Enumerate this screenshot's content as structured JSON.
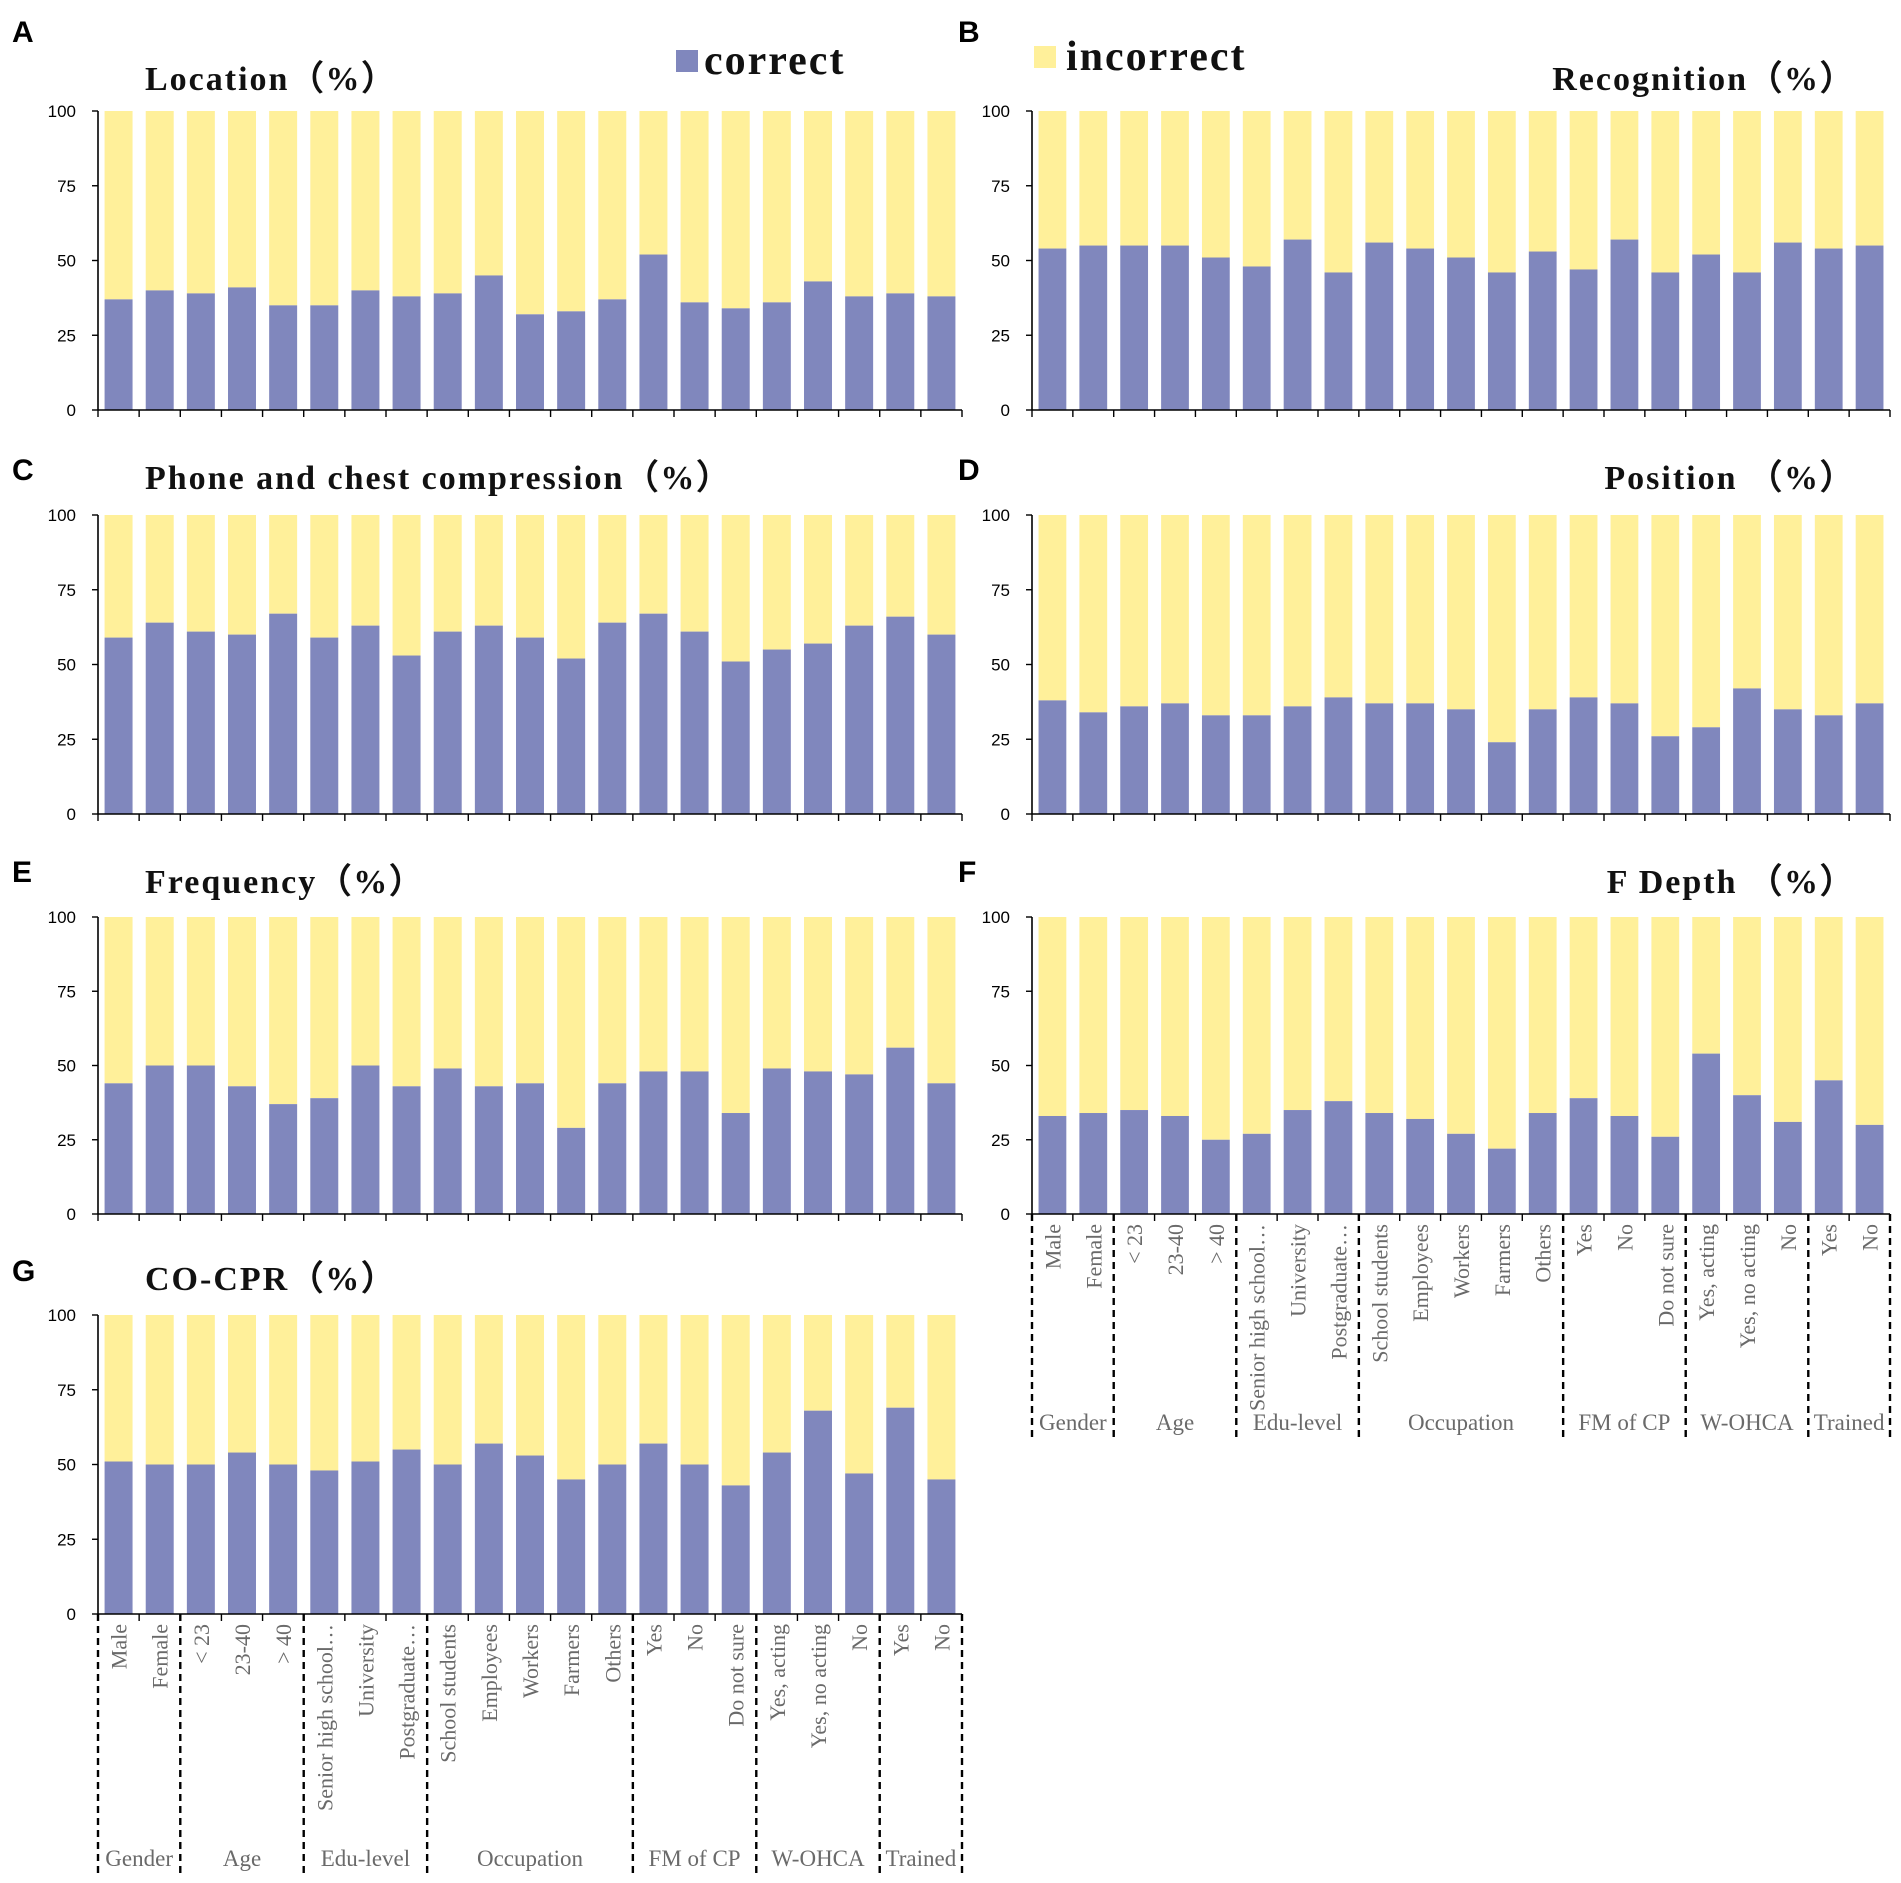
{
  "legend": {
    "correct_label": "correct",
    "incorrect_label": "incorrect",
    "correct_color": "#8087bd",
    "incorrect_color": "#fff09a"
  },
  "categories": [
    "Male",
    "Female",
    "< 23",
    "23-40",
    "> 40",
    "Senior high school…",
    "University",
    "Postgraduate…",
    "School students",
    "Employees",
    "Workers",
    "Farmers",
    "Others",
    "Yes",
    "No",
    "Do not sure",
    "Yes, acting",
    "Yes, no acting",
    "No",
    "Yes",
    "No"
  ],
  "groups": [
    {
      "label": "Gender",
      "start": 0,
      "end": 1
    },
    {
      "label": "Age",
      "start": 2,
      "end": 4
    },
    {
      "label": "Edu-level",
      "start": 5,
      "end": 7
    },
    {
      "label": "Occupation",
      "start": 8,
      "end": 12
    },
    {
      "label": "FM of CP",
      "start": 13,
      "end": 15
    },
    {
      "label": "W-OHCA",
      "start": 16,
      "end": 18
    },
    {
      "label": "Trained",
      "start": 19,
      "end": 20
    }
  ],
  "chart_data": [
    {
      "panel": "A",
      "type": "bar",
      "stacked": true,
      "title": "Location（%）",
      "ylim": [
        0,
        100
      ],
      "yticks": [
        0,
        25,
        50,
        75,
        100
      ],
      "series": [
        {
          "name": "correct",
          "values": [
            37,
            40,
            39,
            41,
            35,
            35,
            40,
            38,
            39,
            45,
            32,
            33,
            37,
            52,
            36,
            34,
            36,
            43,
            38,
            39,
            38
          ]
        },
        {
          "name": "incorrect",
          "values": [
            63,
            60,
            61,
            59,
            65,
            65,
            60,
            62,
            61,
            55,
            68,
            67,
            63,
            48,
            64,
            66,
            64,
            57,
            62,
            61,
            62
          ]
        }
      ]
    },
    {
      "panel": "B",
      "type": "bar",
      "stacked": true,
      "title": "Recognition（%）",
      "ylim": [
        0,
        100
      ],
      "yticks": [
        0,
        25,
        50,
        75,
        100
      ],
      "series": [
        {
          "name": "correct",
          "values": [
            54,
            55,
            55,
            55,
            51,
            48,
            57,
            46,
            56,
            54,
            51,
            46,
            53,
            47,
            57,
            46,
            52,
            46,
            56,
            54,
            55
          ]
        },
        {
          "name": "incorrect",
          "values": [
            46,
            45,
            45,
            45,
            49,
            52,
            43,
            54,
            44,
            46,
            49,
            54,
            47,
            53,
            43,
            54,
            48,
            54,
            44,
            46,
            45
          ]
        }
      ]
    },
    {
      "panel": "C",
      "type": "bar",
      "stacked": true,
      "title": "Phone and chest compression（%）",
      "ylim": [
        0,
        100
      ],
      "yticks": [
        0,
        25,
        50,
        75,
        100
      ],
      "series": [
        {
          "name": "correct",
          "values": [
            59,
            64,
            61,
            60,
            67,
            59,
            63,
            53,
            61,
            63,
            59,
            52,
            64,
            67,
            61,
            51,
            55,
            57,
            63,
            66,
            60
          ]
        },
        {
          "name": "incorrect",
          "values": [
            41,
            36,
            39,
            40,
            33,
            41,
            37,
            47,
            39,
            37,
            41,
            48,
            36,
            33,
            39,
            49,
            45,
            43,
            37,
            34,
            40
          ]
        }
      ]
    },
    {
      "panel": "D",
      "type": "bar",
      "stacked": true,
      "title": "Position （%）",
      "ylim": [
        0,
        100
      ],
      "yticks": [
        0,
        25,
        50,
        75,
        100
      ],
      "series": [
        {
          "name": "correct",
          "values": [
            38,
            34,
            36,
            37,
            33,
            33,
            36,
            39,
            37,
            37,
            35,
            24,
            35,
            39,
            37,
            26,
            29,
            42,
            35,
            33,
            37
          ]
        },
        {
          "name": "incorrect",
          "values": [
            62,
            66,
            64,
            63,
            67,
            67,
            64,
            61,
            63,
            63,
            65,
            76,
            65,
            61,
            63,
            74,
            71,
            58,
            65,
            67,
            63
          ]
        }
      ]
    },
    {
      "panel": "E",
      "type": "bar",
      "stacked": true,
      "title": "Frequency（%）",
      "ylim": [
        0,
        100
      ],
      "yticks": [
        0,
        25,
        50,
        75,
        100
      ],
      "series": [
        {
          "name": "correct",
          "values": [
            44,
            50,
            50,
            43,
            37,
            39,
            50,
            43,
            49,
            43,
            44,
            29,
            44,
            48,
            48,
            34,
            49,
            48,
            47,
            56,
            44
          ]
        },
        {
          "name": "incorrect",
          "values": [
            56,
            50,
            50,
            57,
            63,
            61,
            50,
            57,
            51,
            57,
            56,
            71,
            56,
            52,
            52,
            66,
            51,
            52,
            53,
            44,
            56
          ]
        }
      ]
    },
    {
      "panel": "F",
      "type": "bar",
      "stacked": true,
      "title": "F Depth （%）",
      "ylim": [
        0,
        100
      ],
      "yticks": [
        0,
        25,
        50,
        75,
        100
      ],
      "series": [
        {
          "name": "correct",
          "values": [
            33,
            34,
            35,
            33,
            25,
            27,
            35,
            38,
            34,
            32,
            27,
            22,
            34,
            39,
            33,
            26,
            54,
            40,
            31,
            45,
            30
          ]
        },
        {
          "name": "incorrect",
          "values": [
            67,
            66,
            65,
            67,
            75,
            73,
            65,
            62,
            66,
            68,
            73,
            78,
            66,
            61,
            67,
            74,
            46,
            60,
            69,
            55,
            70
          ]
        }
      ]
    },
    {
      "panel": "G",
      "type": "bar",
      "stacked": true,
      "title": "CO-CPR（%）",
      "ylim": [
        0,
        100
      ],
      "yticks": [
        0,
        25,
        50,
        75,
        100
      ],
      "series": [
        {
          "name": "correct",
          "values": [
            51,
            50,
            50,
            54,
            50,
            48,
            51,
            55,
            50,
            57,
            53,
            45,
            50,
            57,
            50,
            43,
            54,
            68,
            47,
            69,
            45
          ]
        },
        {
          "name": "incorrect",
          "values": [
            49,
            50,
            50,
            46,
            50,
            52,
            49,
            45,
            50,
            43,
            47,
            55,
            50,
            43,
            50,
            57,
            46,
            32,
            53,
            31,
            55
          ]
        }
      ]
    }
  ]
}
